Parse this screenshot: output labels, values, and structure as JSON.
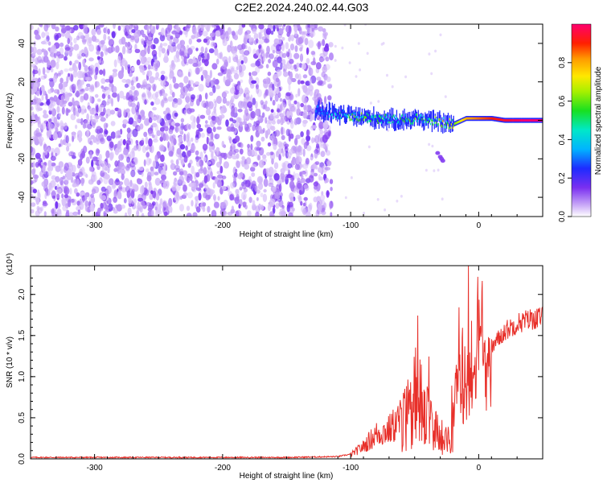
{
  "title": "C2E2.2024.240.02.44.G03",
  "colors": {
    "snr_line": "#e8302a",
    "noise_purple": "#7b2ff0",
    "axis": "#000000"
  },
  "chart_data": [
    {
      "type": "heatmap",
      "name": "spectrogram",
      "xlabel": "Height of straight line (km)",
      "ylabel": "Frequency (Hz)",
      "xlim": [
        -350,
        50
      ],
      "ylim": [
        -50,
        50
      ],
      "xticks": [
        -300,
        -200,
        -100,
        0
      ],
      "xtick_labels": [
        "-300",
        "-200",
        "-100",
        "0"
      ],
      "yticks": [
        -40,
        -20,
        0,
        20,
        40
      ],
      "ytick_labels": [
        "-40",
        "-20",
        "0",
        "20",
        "40"
      ],
      "noise_region_x": [
        -350,
        -115
      ],
      "signal_band": [
        {
          "x": -128,
          "f": 5,
          "amp": 0.3
        },
        {
          "x": -110,
          "f": 3,
          "amp": 0.4
        },
        {
          "x": -95,
          "f": 2,
          "amp": 0.5
        },
        {
          "x": -80,
          "f": 1,
          "amp": 0.5
        },
        {
          "x": -65,
          "f": 0,
          "amp": 0.45
        },
        {
          "x": -50,
          "f": 1,
          "amp": 0.5
        },
        {
          "x": -40,
          "f": 0,
          "amp": 0.45
        },
        {
          "x": -30,
          "f": -1,
          "amp": 0.55
        },
        {
          "x": -20,
          "f": -2,
          "amp": 0.6
        },
        {
          "x": -10,
          "f": 1,
          "amp": 0.8
        },
        {
          "x": 0,
          "f": 1,
          "amp": 0.85
        },
        {
          "x": 10,
          "f": 1,
          "amp": 0.9
        },
        {
          "x": 20,
          "f": 0,
          "amp": 0.95
        },
        {
          "x": 35,
          "f": 0,
          "amp": 1.0
        },
        {
          "x": 50,
          "f": 0,
          "amp": 1.0
        }
      ],
      "colorbar": {
        "label": "Normalized spectral amplitude",
        "range": [
          0.0,
          1.0
        ],
        "ticks": [
          0.0,
          0.2,
          0.4,
          0.6,
          0.8
        ],
        "tick_labels": [
          "0.0",
          "0.2",
          "0.4",
          "0.6",
          "0.8"
        ]
      }
    },
    {
      "type": "line",
      "name": "snr",
      "xlabel": "Height of straight line (km)",
      "ylabel": "SNR (10 * v/v)",
      "exponent_label": "(x10⁴)",
      "xlim": [
        -350,
        50
      ],
      "ylim": [
        0.0,
        2.35
      ],
      "xticks": [
        -300,
        -200,
        -100,
        0
      ],
      "xtick_labels": [
        "-300",
        "-200",
        "-100",
        "0"
      ],
      "yticks": [
        0.0,
        0.5,
        1.0,
        1.5,
        2.0
      ],
      "ytick_labels": [
        "0.0",
        "0.5",
        "1.0",
        "1.5",
        "2.0"
      ],
      "series": [
        {
          "name": "SNR",
          "x": [
            -350,
            -300,
            -250,
            -200,
            -150,
            -110,
            -100,
            -90,
            -80,
            -70,
            -60,
            -50,
            -45,
            -40,
            -35,
            -30,
            -25,
            -20,
            -15,
            -10,
            -5,
            0,
            5,
            10,
            15,
            20,
            30,
            40,
            50
          ],
          "y": [
            0.01,
            0.01,
            0.01,
            0.01,
            0.01,
            0.02,
            0.05,
            0.15,
            0.3,
            0.35,
            0.5,
            0.9,
            0.8,
            0.65,
            0.45,
            0.35,
            0.25,
            0.5,
            1.0,
            0.9,
            1.1,
            1.3,
            1.2,
            1.35,
            1.45,
            1.55,
            1.65,
            1.7,
            1.72
          ],
          "peak": {
            "x": -8,
            "y": 2.35
          }
        }
      ]
    }
  ]
}
